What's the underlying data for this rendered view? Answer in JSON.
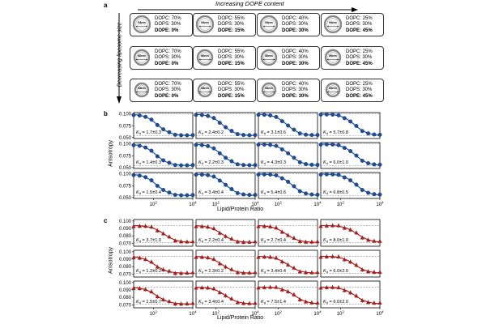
{
  "panel_a": {
    "label": "a",
    "header_top": "Increasing DOPE content",
    "header_left": "Decreasing liposome size",
    "sizes": [
      "94nm",
      "86nm",
      "68nm"
    ],
    "row_sizes": [
      [
        "94nm",
        "94nm",
        "94nm",
        "94nm"
      ],
      [
        "86nm",
        "86nm",
        "86nm",
        "86nm"
      ],
      [
        "68nm",
        "68nm",
        "68nm",
        "68nm"
      ]
    ],
    "compositions": [
      {
        "dopc": "DOPC: 70%",
        "dops": "DOPS: 30%",
        "dope": "DOPE: 0%"
      },
      {
        "dopc": "DOPC: 55%",
        "dops": "DOPS: 30%",
        "dope": "DOPE: 15%"
      },
      {
        "dopc": "DOPC: 40%",
        "dops": "DOPS: 30%",
        "dope": "DOPE: 30%"
      },
      {
        "dopc": "DOPC: 25%",
        "dops": "DOPS: 30%",
        "dope": "DOPE: 45%"
      }
    ]
  },
  "panel_b": {
    "label": "b",
    "ylabel": "Anisotropy",
    "xlabel": "Lipid/Protein Ratio",
    "color": "#1f4e96"
  },
  "panel_c": {
    "label": "c",
    "ylabel": "Anisotropy",
    "xlabel": "Lipid/Protein Ratio",
    "color": "#b01c1c"
  },
  "chart_data": [
    {
      "type": "scatter",
      "panel": "b",
      "title": "",
      "xlabel": "Lipid/Protein Ratio",
      "ylabel": "Anisotropy",
      "xscale": "log",
      "xlim": [
        10,
        10000
      ],
      "ylim": [
        0.048,
        0.103
      ],
      "yticks": [
        "0.100",
        "0.075",
        "0.050"
      ],
      "ytick_values": [
        0.1,
        0.075,
        0.05
      ],
      "xticks": [
        "10^2",
        "10^4"
      ],
      "xtick_values": [
        100,
        10000
      ],
      "marker": "circle",
      "color": "#1f4e96",
      "top": 0.1,
      "bottom": 0.054,
      "x": [
        10,
        20,
        40,
        80,
        160,
        320,
        640,
        1280,
        2560,
        5120,
        10000
      ],
      "panels": [
        {
          "row": 0,
          "col": 0,
          "kd_label": "K_d = 1.7±0.3",
          "kd": 1.7
        },
        {
          "row": 0,
          "col": 1,
          "kd_label": "K_d = 2.4±0.2",
          "kd": 2.4
        },
        {
          "row": 0,
          "col": 2,
          "kd_label": "K_d = 3.1±0.6",
          "kd": 3.1
        },
        {
          "row": 0,
          "col": 3,
          "kd_label": "K_d = 5.7±0.8",
          "kd": 5.7
        },
        {
          "row": 1,
          "col": 0,
          "kd_label": "K_d = 1.4±0.3",
          "kd": 1.4
        },
        {
          "row": 1,
          "col": 1,
          "kd_label": "K_d = 2.2±0.3",
          "kd": 2.2
        },
        {
          "row": 1,
          "col": 2,
          "kd_label": "K_d = 4.3±0.3",
          "kd": 4.3
        },
        {
          "row": 1,
          "col": 3,
          "kd_label": "K_d = 6.0±1.0",
          "kd": 6.0
        },
        {
          "row": 2,
          "col": 0,
          "kd_label": "K_d = 1.5±0.4",
          "kd": 1.5
        },
        {
          "row": 2,
          "col": 1,
          "kd_label": "K_d = 3.4±0.4",
          "kd": 3.4
        },
        {
          "row": 2,
          "col": 2,
          "kd_label": "K_d = 5.4±0.6",
          "kd": 5.4
        },
        {
          "row": 2,
          "col": 3,
          "kd_label": "K_d = 6.8±0.5",
          "kd": 6.8
        }
      ]
    },
    {
      "type": "scatter",
      "panel": "c",
      "title": "",
      "xlabel": "Lipid/Protein Ratio",
      "ylabel": "Anisotropy",
      "xscale": "log",
      "xlim": [
        10,
        10000
      ],
      "ylim": [
        0.066,
        0.102
      ],
      "yticks": [
        "0.100",
        "0.090",
        "0.080",
        "0.070"
      ],
      "ytick_values": [
        0.1,
        0.09,
        0.08,
        0.07
      ],
      "xticks": [
        "10^2",
        "10^4"
      ],
      "xtick_values": [
        100,
        10000
      ],
      "marker": "triangle",
      "color": "#b01c1c",
      "top": 0.094,
      "bottom": 0.071,
      "x": [
        10,
        20,
        40,
        80,
        160,
        320,
        640,
        1280,
        2560,
        5120,
        10000
      ],
      "panels": [
        {
          "row": 0,
          "col": 0,
          "kd_label": "K_d = 3.7±1.0",
          "kd": 3.7
        },
        {
          "row": 0,
          "col": 1,
          "kd_label": "K_d = 2.2±0.4",
          "kd": 2.2
        },
        {
          "row": 0,
          "col": 2,
          "kd_label": "K_d = 2.7±0.4",
          "kd": 2.7
        },
        {
          "row": 0,
          "col": 3,
          "kd_label": "K_d = 8.0±1.0",
          "kd": 8.0
        },
        {
          "row": 1,
          "col": 0,
          "kd_label": "K_d = 1.2±0.2",
          "kd": 1.2
        },
        {
          "row": 1,
          "col": 1,
          "kd_label": "K_d = 2.3±0.2",
          "kd": 2.3
        },
        {
          "row": 1,
          "col": 2,
          "kd_label": "K_d = 3.4±0.4",
          "kd": 3.4
        },
        {
          "row": 1,
          "col": 3,
          "kd_label": "K_d = 6.0±2.0",
          "kd": 6.0
        },
        {
          "row": 2,
          "col": 0,
          "kd_label": "K_d = 1.5±0.7",
          "kd": 1.5
        },
        {
          "row": 2,
          "col": 1,
          "kd_label": "K_d = 3.4±0.4",
          "kd": 3.4
        },
        {
          "row": 2,
          "col": 2,
          "kd_label": "K_d = 7.5±1.4",
          "kd": 7.5
        },
        {
          "row": 2,
          "col": 3,
          "kd_label": "K_d = 6.0±2.0",
          "kd": 6.0
        }
      ]
    }
  ]
}
